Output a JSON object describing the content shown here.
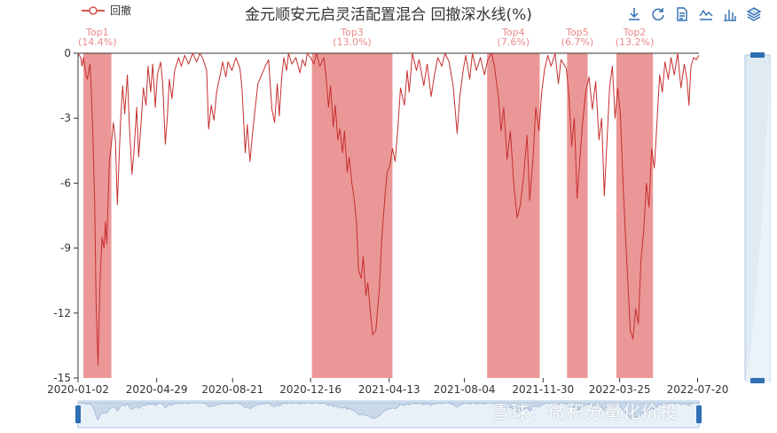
{
  "title": "金元顺安元启灵活配置混合 回撤深水线(%)",
  "legend": {
    "label": "回撤",
    "color": "#d9534f"
  },
  "toolbar": [
    {
      "icon": "download-icon"
    },
    {
      "icon": "refresh-icon"
    },
    {
      "icon": "data-view-icon"
    },
    {
      "icon": "line-chart-icon"
    },
    {
      "icon": "bar-chart-icon"
    },
    {
      "icon": "stack-icon"
    }
  ],
  "watermark": "雪球：微积分量化价投",
  "colors": {
    "line": "#c62f2f",
    "band": "#e36f6f",
    "band_label": "#e98b8b",
    "slider": "#dfeaf3",
    "slider_border": "#a8c6df"
  },
  "chart_data": {
    "type": "area",
    "series": [
      {
        "name": "回撤",
        "points": [
          [
            "2020-01-02",
            0
          ],
          [
            "2020-01-06",
            -0.2
          ],
          [
            "2020-01-08",
            -0.6
          ],
          [
            "2020-01-10",
            -0.2
          ],
          [
            "2020-01-14",
            -1.0
          ],
          [
            "2020-01-16",
            -1.2
          ],
          [
            "2020-01-20",
            -0.5
          ],
          [
            "2020-01-22",
            -1.8
          ],
          [
            "2020-01-24",
            -3.5
          ],
          [
            "2020-01-27",
            -7.0
          ],
          [
            "2020-01-29",
            -11.5
          ],
          [
            "2020-02-01",
            -14.4
          ],
          [
            "2020-02-04",
            -10.5
          ],
          [
            "2020-02-07",
            -8.5
          ],
          [
            "2020-02-10",
            -9.0
          ],
          [
            "2020-02-12",
            -7.8
          ],
          [
            "2020-02-14",
            -8.8
          ],
          [
            "2020-02-18",
            -5.0
          ],
          [
            "2020-02-21",
            -4.2
          ],
          [
            "2020-02-24",
            -3.2
          ],
          [
            "2020-02-27",
            -4.0
          ],
          [
            "2020-03-01",
            -7.0
          ],
          [
            "2020-03-04",
            -4.5
          ],
          [
            "2020-03-06",
            -3.0
          ],
          [
            "2020-03-09",
            -1.5
          ],
          [
            "2020-03-12",
            -2.8
          ],
          [
            "2020-03-16",
            -1.0
          ],
          [
            "2020-03-19",
            -3.3
          ],
          [
            "2020-03-23",
            -5.6
          ],
          [
            "2020-03-26",
            -4.5
          ],
          [
            "2020-03-30",
            -2.5
          ],
          [
            "2020-04-02",
            -4.8
          ],
          [
            "2020-04-06",
            -3.0
          ],
          [
            "2020-04-09",
            -1.6
          ],
          [
            "2020-04-13",
            -2.4
          ],
          [
            "2020-04-16",
            -0.6
          ],
          [
            "2020-04-20",
            -1.8
          ],
          [
            "2020-04-23",
            -0.5
          ],
          [
            "2020-04-27",
            -2.5
          ],
          [
            "2020-04-30",
            -1.0
          ],
          [
            "2020-05-05",
            -0.4
          ],
          [
            "2020-05-08",
            -1.4
          ],
          [
            "2020-05-12",
            -4.2
          ],
          [
            "2020-05-15",
            -3.0
          ],
          [
            "2020-05-18",
            -1.2
          ],
          [
            "2020-05-22",
            -2.1
          ],
          [
            "2020-05-26",
            -0.8
          ],
          [
            "2020-06-01",
            -0.2
          ],
          [
            "2020-06-05",
            -0.6
          ],
          [
            "2020-06-10",
            -0.1
          ],
          [
            "2020-06-16",
            -0.5
          ],
          [
            "2020-06-22",
            0
          ],
          [
            "2020-06-28",
            -0.4
          ],
          [
            "2020-07-03",
            0
          ],
          [
            "2020-07-08",
            -0.3
          ],
          [
            "2020-07-13",
            -0.8
          ],
          [
            "2020-07-16",
            -3.5
          ],
          [
            "2020-07-20",
            -2.4
          ],
          [
            "2020-07-24",
            -3.1
          ],
          [
            "2020-07-28",
            -1.8
          ],
          [
            "2020-08-03",
            -0.9
          ],
          [
            "2020-08-06",
            -0.4
          ],
          [
            "2020-08-11",
            -1.1
          ],
          [
            "2020-08-14",
            -0.4
          ],
          [
            "2020-08-20",
            -0.8
          ],
          [
            "2020-08-26",
            -0.2
          ],
          [
            "2020-09-01",
            -0.7
          ],
          [
            "2020-09-04",
            -1.6
          ],
          [
            "2020-09-09",
            -4.6
          ],
          [
            "2020-09-12",
            -3.3
          ],
          [
            "2020-09-16",
            -5.0
          ],
          [
            "2020-09-19",
            -4.0
          ],
          [
            "2020-09-23",
            -2.8
          ],
          [
            "2020-09-28",
            -1.4
          ],
          [
            "2020-10-09",
            -0.6
          ],
          [
            "2020-10-14",
            -0.3
          ],
          [
            "2020-10-19",
            -2.6
          ],
          [
            "2020-10-23",
            -3.2
          ],
          [
            "2020-10-27",
            -1.4
          ],
          [
            "2020-10-30",
            -2.9
          ],
          [
            "2020-11-03",
            -1.0
          ],
          [
            "2020-11-06",
            -0.2
          ],
          [
            "2020-11-10",
            -0.8
          ],
          [
            "2020-11-13",
            0
          ],
          [
            "2020-11-18",
            -0.5
          ],
          [
            "2020-11-24",
            -0.2
          ],
          [
            "2020-11-30",
            -0.9
          ],
          [
            "2020-12-04",
            -0.3
          ],
          [
            "2020-12-08",
            -0.6
          ],
          [
            "2020-12-11",
            0
          ],
          [
            "2020-12-16",
            -0.2
          ],
          [
            "2020-12-21",
            -0.5
          ],
          [
            "2020-12-25",
            0
          ],
          [
            "2020-12-30",
            -0.6
          ],
          [
            "2021-01-05",
            -0.2
          ],
          [
            "2021-01-08",
            -1.0
          ],
          [
            "2021-01-12",
            -2.5
          ],
          [
            "2021-01-15",
            -1.5
          ],
          [
            "2021-01-19",
            -3.4
          ],
          [
            "2021-01-22",
            -2.4
          ],
          [
            "2021-01-26",
            -4.0
          ],
          [
            "2021-01-29",
            -3.5
          ],
          [
            "2021-02-02",
            -4.6
          ],
          [
            "2021-02-05",
            -3.6
          ],
          [
            "2021-02-09",
            -5.5
          ],
          [
            "2021-02-12",
            -4.8
          ],
          [
            "2021-02-16",
            -6.0
          ],
          [
            "2021-02-19",
            -6.6
          ],
          [
            "2021-02-23",
            -7.8
          ],
          [
            "2021-02-26",
            -10.0
          ],
          [
            "2021-03-02",
            -10.4
          ],
          [
            "2021-03-05",
            -9.4
          ],
          [
            "2021-03-09",
            -11.2
          ],
          [
            "2021-03-12",
            -10.6
          ],
          [
            "2021-03-16",
            -12.0
          ],
          [
            "2021-03-19",
            -13.0
          ],
          [
            "2021-03-24",
            -12.8
          ],
          [
            "2021-03-29",
            -11.0
          ],
          [
            "2021-04-02",
            -8.5
          ],
          [
            "2021-04-07",
            -6.5
          ],
          [
            "2021-04-10",
            -5.5
          ],
          [
            "2021-04-14",
            -5.2
          ],
          [
            "2021-04-18",
            -4.4
          ],
          [
            "2021-04-22",
            -5.0
          ],
          [
            "2021-04-26",
            -3.5
          ],
          [
            "2021-04-30",
            -1.6
          ],
          [
            "2021-05-06",
            -2.4
          ],
          [
            "2021-05-10",
            -0.8
          ],
          [
            "2021-05-13",
            -1.8
          ],
          [
            "2021-05-18",
            0
          ],
          [
            "2021-05-24",
            -0.8
          ],
          [
            "2021-05-28",
            -0.3
          ],
          [
            "2021-06-04",
            -1.5
          ],
          [
            "2021-06-09",
            -0.5
          ],
          [
            "2021-06-15",
            -2.0
          ],
          [
            "2021-06-20",
            -1.0
          ],
          [
            "2021-06-25",
            -0.2
          ],
          [
            "2021-07-01",
            -0.6
          ],
          [
            "2021-07-06",
            0
          ],
          [
            "2021-07-12",
            -0.4
          ],
          [
            "2021-07-18",
            -1.5
          ],
          [
            "2021-07-24",
            -3.7
          ],
          [
            "2021-07-28",
            -2.0
          ],
          [
            "2021-08-02",
            -0.8
          ],
          [
            "2021-08-06",
            -0.1
          ],
          [
            "2021-08-12",
            -1.2
          ],
          [
            "2021-08-16",
            0
          ],
          [
            "2021-08-22",
            -0.8
          ],
          [
            "2021-08-28",
            -0.2
          ],
          [
            "2021-09-03",
            -1.0
          ],
          [
            "2021-09-08",
            -0.3
          ],
          [
            "2021-09-14",
            0
          ],
          [
            "2021-09-18",
            -0.6
          ],
          [
            "2021-09-24",
            -2.0
          ],
          [
            "2021-09-28",
            -3.6
          ],
          [
            "2021-10-02",
            -2.5
          ],
          [
            "2021-10-07",
            -4.9
          ],
          [
            "2021-10-12",
            -3.6
          ],
          [
            "2021-10-17",
            -6.0
          ],
          [
            "2021-10-22",
            -7.6
          ],
          [
            "2021-10-27",
            -7.0
          ],
          [
            "2021-11-01",
            -5.6
          ],
          [
            "2021-11-06",
            -3.8
          ],
          [
            "2021-11-10",
            -6.8
          ],
          [
            "2021-11-15",
            -4.8
          ],
          [
            "2021-11-19",
            -2.5
          ],
          [
            "2021-11-24",
            -3.6
          ],
          [
            "2021-11-28",
            -1.8
          ],
          [
            "2021-12-02",
            -0.8
          ],
          [
            "2021-12-07",
            -0.1
          ],
          [
            "2021-12-12",
            -0.6
          ],
          [
            "2021-12-18",
            0
          ],
          [
            "2021-12-23",
            -1.4
          ],
          [
            "2021-12-27",
            -0.3
          ],
          [
            "2022-01-04",
            -0.7
          ],
          [
            "2022-01-08",
            -2.0
          ],
          [
            "2022-01-12",
            -4.3
          ],
          [
            "2022-01-16",
            -3.0
          ],
          [
            "2022-01-20",
            -6.7
          ],
          [
            "2022-01-24",
            -5.0
          ],
          [
            "2022-01-28",
            -3.3
          ],
          [
            "2022-02-02",
            -1.8
          ],
          [
            "2022-02-07",
            -1.1
          ],
          [
            "2022-02-12",
            -2.6
          ],
          [
            "2022-02-17",
            -1.3
          ],
          [
            "2022-02-22",
            -4.0
          ],
          [
            "2022-02-26",
            -3.0
          ],
          [
            "2022-03-02",
            -6.6
          ],
          [
            "2022-03-06",
            -4.0
          ],
          [
            "2022-03-10",
            -1.5
          ],
          [
            "2022-03-14",
            -0.6
          ],
          [
            "2022-03-18",
            -3.0
          ],
          [
            "2022-03-22",
            -1.6
          ],
          [
            "2022-03-26",
            -2.8
          ],
          [
            "2022-03-30",
            -6.0
          ],
          [
            "2022-04-03",
            -8.6
          ],
          [
            "2022-04-07",
            -11.0
          ],
          [
            "2022-04-10",
            -12.8
          ],
          [
            "2022-04-14",
            -13.2
          ],
          [
            "2022-04-18",
            -11.8
          ],
          [
            "2022-04-22",
            -12.5
          ],
          [
            "2022-04-26",
            -9.5
          ],
          [
            "2022-04-30",
            -8.2
          ],
          [
            "2022-05-04",
            -6.0
          ],
          [
            "2022-05-08",
            -7.1
          ],
          [
            "2022-05-12",
            -4.4
          ],
          [
            "2022-05-16",
            -5.3
          ],
          [
            "2022-05-20",
            -3.2
          ],
          [
            "2022-05-24",
            -1.0
          ],
          [
            "2022-05-28",
            -1.8
          ],
          [
            "2022-06-01",
            -0.4
          ],
          [
            "2022-06-06",
            -1.2
          ],
          [
            "2022-06-10",
            -0.2
          ],
          [
            "2022-06-15",
            -1.0
          ],
          [
            "2022-06-20",
            0
          ],
          [
            "2022-06-25",
            -1.6
          ],
          [
            "2022-06-30",
            -0.5
          ],
          [
            "2022-07-04",
            -1.2
          ],
          [
            "2022-07-07",
            -2.4
          ],
          [
            "2022-07-10",
            -0.6
          ],
          [
            "2022-07-14",
            -0.2
          ],
          [
            "2022-07-18",
            -0.3
          ],
          [
            "2022-07-22",
            -0.1
          ]
        ]
      }
    ],
    "bands": [
      {
        "label": "Top1",
        "value": "(14.4%)",
        "start": "2020-01-10",
        "end": "2020-02-21"
      },
      {
        "label": "Top3",
        "value": "(13.0%)",
        "start": "2020-12-18",
        "end": "2021-04-18"
      },
      {
        "label": "Top4",
        "value": "(7.6%)",
        "start": "2021-09-07",
        "end": "2021-11-25"
      },
      {
        "label": "Top5",
        "value": "(6.7%)",
        "start": "2022-01-05",
        "end": "2022-02-05"
      },
      {
        "label": "Top2",
        "value": "(13.2%)",
        "start": "2022-03-20",
        "end": "2022-05-14"
      }
    ],
    "xticks": [
      "2020-01-02",
      "2020-04-29",
      "2020-08-21",
      "2020-12-16",
      "2021-04-13",
      "2021-08-04",
      "2021-11-30",
      "2022-03-25",
      "2022-07-20"
    ],
    "yticks": [
      "0",
      "-3",
      "-6",
      "-9",
      "-12",
      "-15"
    ],
    "ylim": [
      -15,
      0
    ],
    "xlim": [
      "2020-01-02",
      "2022-07-22"
    ],
    "grid": false,
    "legend_position": "top-left"
  }
}
